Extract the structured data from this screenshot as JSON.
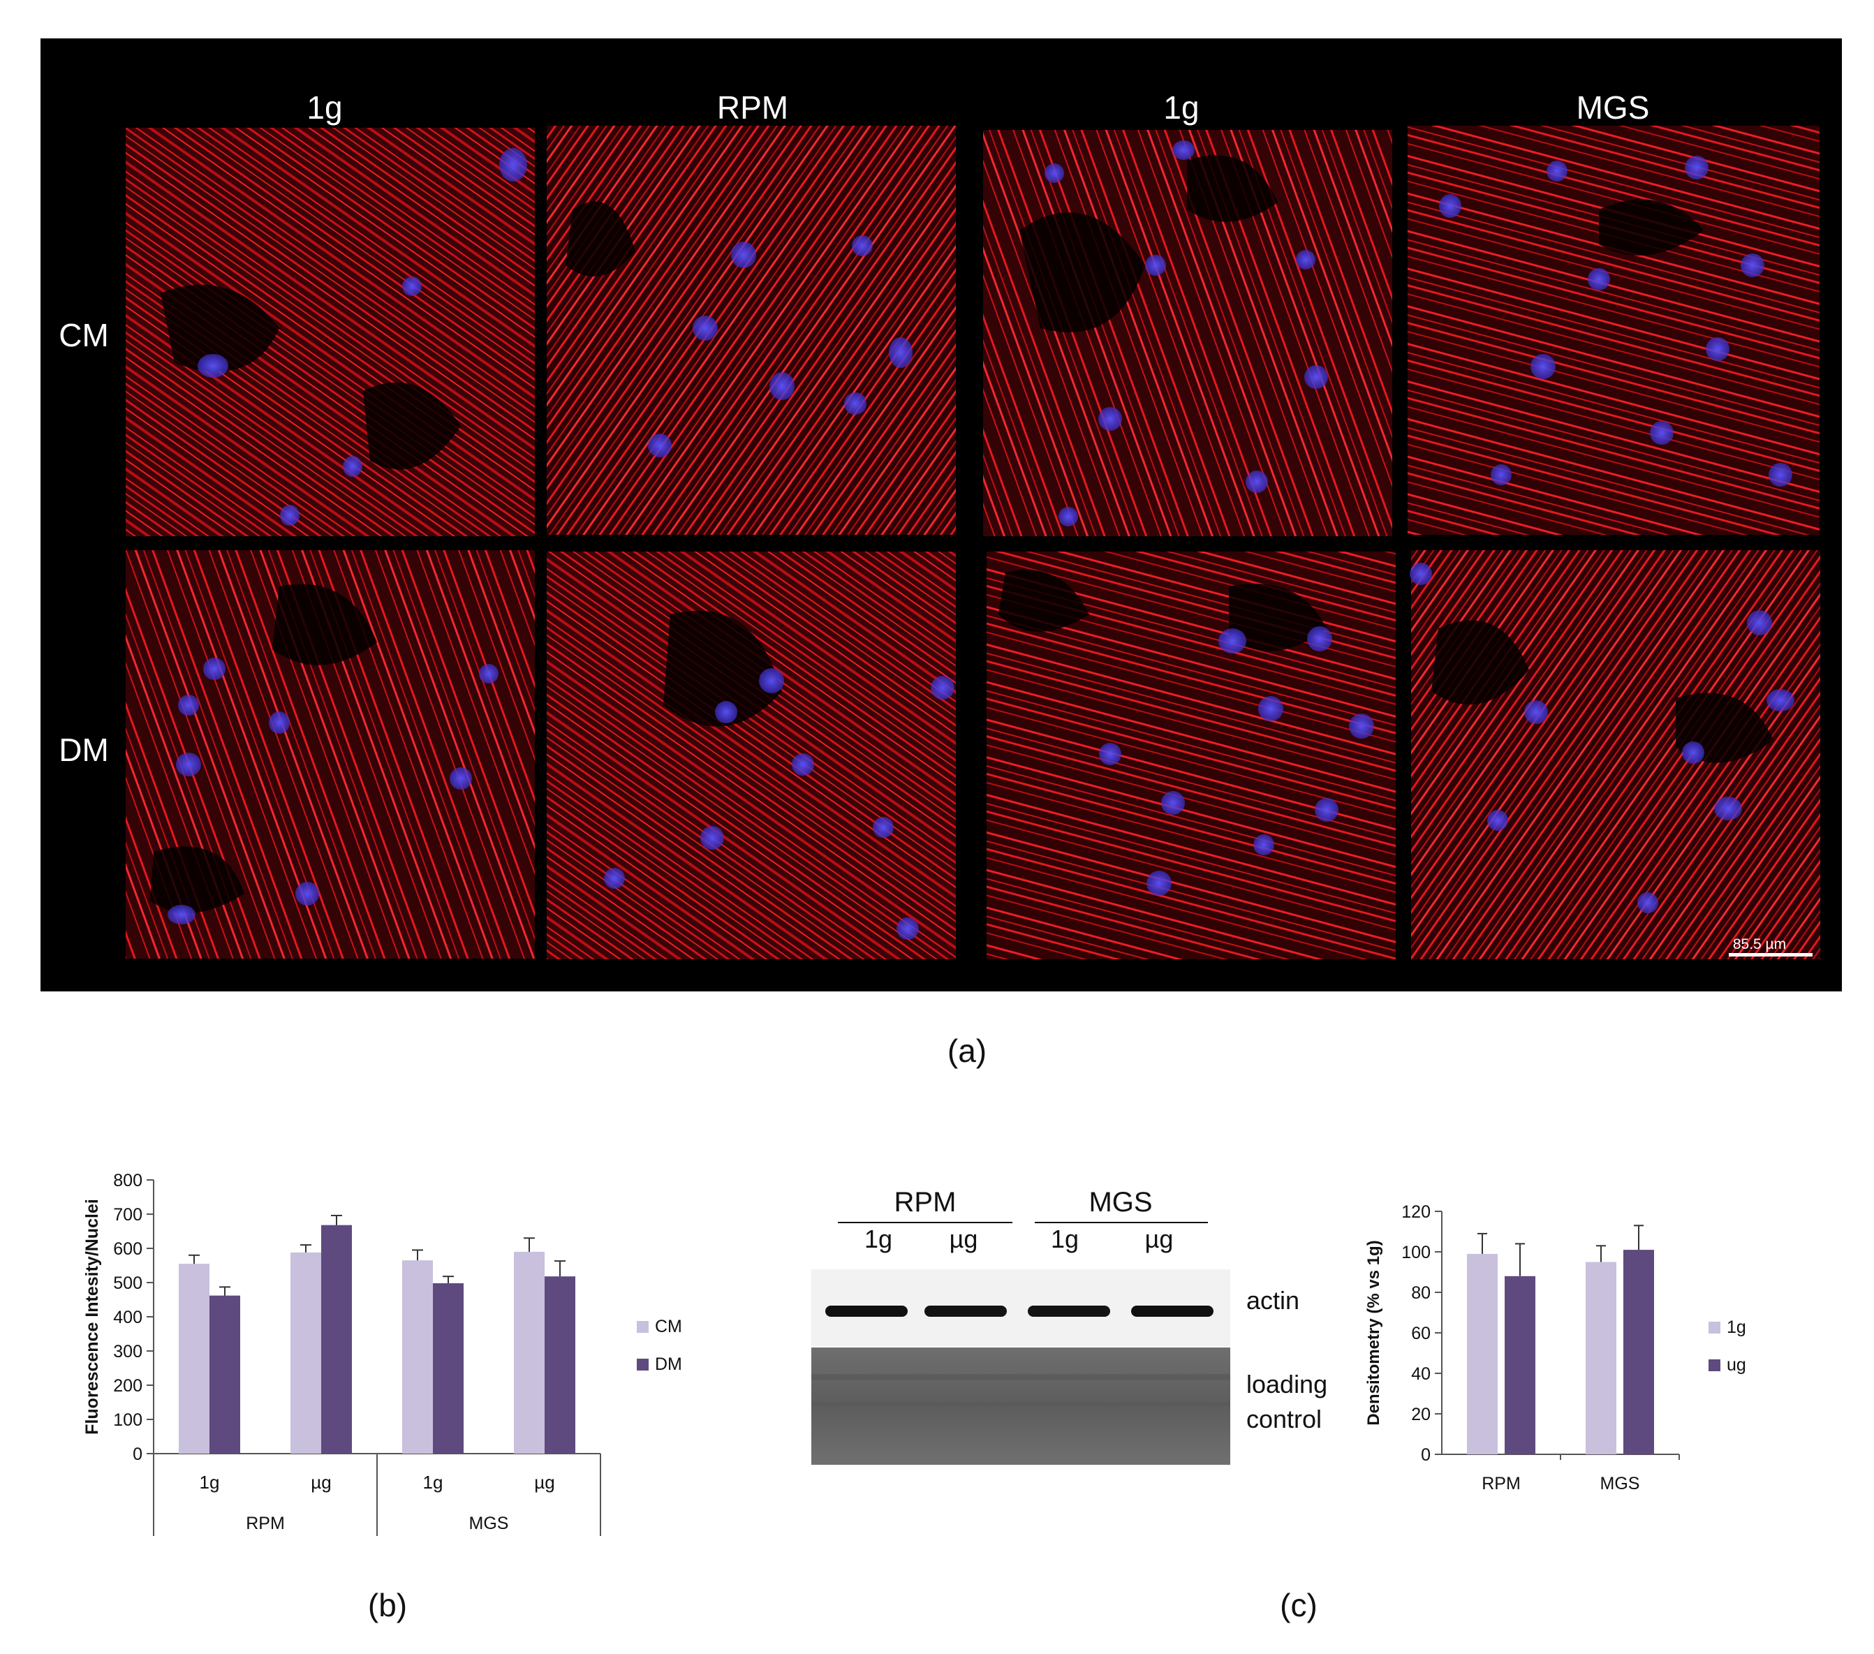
{
  "panel_a": {
    "column_labels": [
      "1g",
      "RPM",
      "1g",
      "MGS"
    ],
    "row_labels": [
      "CM",
      "DM"
    ],
    "scale_bar_label": "85.5 µm",
    "caption": "(a)",
    "colors": {
      "background": "#000000",
      "actin": "#e0141c",
      "nuclei": "#3a2fc8"
    }
  },
  "panel_b": {
    "caption": "(b)",
    "chart_data": {
      "type": "bar",
      "ylabel": "Fluorescence Intesity/Nuclei",
      "ylim": [
        0,
        800
      ],
      "yticks": [
        "0",
        "100",
        "200",
        "300",
        "400",
        "500",
        "600",
        "700",
        "800"
      ],
      "categories": [
        "1g",
        "µg",
        "1g",
        "µg"
      ],
      "groups": [
        "RPM",
        "MGS"
      ],
      "series": [
        {
          "name": "CM",
          "color": "#c9c0dd",
          "values": [
            555,
            588,
            565,
            590
          ],
          "errors": [
            25,
            22,
            30,
            40
          ]
        },
        {
          "name": "DM",
          "color": "#5e4a7e",
          "values": [
            462,
            668,
            498,
            518
          ],
          "errors": [
            25,
            28,
            20,
            45
          ]
        }
      ],
      "legend_position": "right"
    }
  },
  "panel_c": {
    "caption": "(c)",
    "blot": {
      "group_labels": [
        "RPM",
        "MGS"
      ],
      "lane_labels": [
        "1g",
        "µg",
        "1g",
        "µg"
      ],
      "band_labels": [
        "actin",
        "loading",
        "control"
      ]
    },
    "chart_data": {
      "type": "bar",
      "ylabel": "Densitometry (% vs 1g)",
      "ylim": [
        0,
        120
      ],
      "yticks": [
        "0",
        "20",
        "40",
        "60",
        "80",
        "100",
        "120"
      ],
      "categories": [
        "RPM",
        "MGS"
      ],
      "series": [
        {
          "name": "1g",
          "color": "#c9c0dd",
          "values": [
            99,
            95
          ],
          "errors": [
            10,
            8
          ]
        },
        {
          "name": "ug",
          "color": "#5e4a7e",
          "values": [
            88,
            101
          ],
          "errors": [
            16,
            12
          ]
        }
      ],
      "legend_position": "right"
    }
  }
}
